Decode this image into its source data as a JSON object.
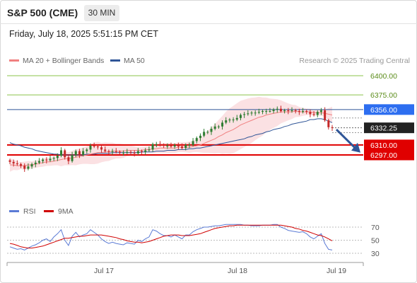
{
  "header": {
    "title": "S&P 500 (CME)",
    "timeframe": "30 MIN",
    "datetime": "Friday, July 18, 2025 5:51:15 PM CET"
  },
  "legend": {
    "ma20_label": "MA 20 + Bollinger Bands",
    "ma20_color": "#f08080",
    "ma50_label": "MA 50",
    "ma50_color": "#2f5597",
    "credit": "Research © 2025 Trading Central"
  },
  "colors": {
    "up": "#2e7d32",
    "down": "#c62828",
    "resistance": "#8bc34a",
    "support": "#e00000",
    "pivot": "#2f5597",
    "last_price_bg": "#222222",
    "arrow": "#2f5597",
    "rsi": "#5b7bd5",
    "rsi_ma": "#d00000"
  },
  "chart_data": [
    {
      "type": "candlestick",
      "title": "S&P 500 (CME)",
      "timeframe": "30 MIN",
      "x_labels": [
        "Jul 17",
        "Jul 18",
        "Jul 19"
      ],
      "ylim": [
        6270,
        6425
      ],
      "grid": false,
      "legend_placement": "top-left",
      "overlays": [
        "MA 20 + Bollinger Bands",
        "MA 50"
      ],
      "levels": [
        {
          "label": "6400.00",
          "value": 6400.0,
          "kind": "resistance"
        },
        {
          "label": "6375.00",
          "value": 6375.0,
          "kind": "resistance"
        },
        {
          "label": "6356.00",
          "value": 6356.0,
          "kind": "pivot"
        },
        {
          "label": "6332.25",
          "value": 6332.25,
          "kind": "last"
        },
        {
          "label": "6310.00",
          "value": 6310.0,
          "kind": "support"
        },
        {
          "label": "6297.00",
          "value": 6297.0,
          "kind": "support"
        }
      ],
      "closes": [
        6288,
        6286,
        6285,
        6283,
        6279,
        6282,
        6285,
        6287,
        6289,
        6291,
        6290,
        6292,
        6293,
        6296,
        6303,
        6294,
        6289,
        6297,
        6302,
        6297,
        6302,
        6304,
        6309,
        6308,
        6307,
        6304,
        6302,
        6301,
        6302,
        6301,
        6300,
        6300,
        6301,
        6300,
        6299,
        6302,
        6301,
        6303,
        6304,
        6311,
        6311,
        6310,
        6309,
        6309,
        6308,
        6310,
        6308,
        6306,
        6310,
        6310,
        6315,
        6319,
        6322,
        6327,
        6327,
        6331,
        6334,
        6334,
        6339,
        6342,
        6343,
        6343,
        6345,
        6349,
        6350,
        6351,
        6352,
        6352,
        6353,
        6354,
        6354,
        6354,
        6356,
        6357,
        6354,
        6355,
        6354,
        6355,
        6354,
        6353,
        6354,
        6353,
        6350,
        6349,
        6353,
        6355,
        6342,
        6333,
        6332.25
      ],
      "ma20": [
        6284,
        6284,
        6283,
        6283,
        6283,
        6284,
        6284,
        6285,
        6286,
        6287,
        6288,
        6288,
        6289,
        6290,
        6291,
        6292,
        6292,
        6293,
        6294,
        6295,
        6296,
        6297,
        6298,
        6299,
        6300,
        6300,
        6301,
        6301,
        6302,
        6302,
        6302,
        6302,
        6303,
        6303,
        6303,
        6303,
        6303,
        6304,
        6304,
        6305,
        6305,
        6306,
        6306,
        6306,
        6306,
        6306,
        6307,
        6307,
        6307,
        6307,
        6308,
        6309,
        6310,
        6312,
        6314,
        6316,
        6318,
        6321,
        6323,
        6326,
        6328,
        6330,
        6333,
        6336,
        6338,
        6340,
        6342,
        6344,
        6346,
        6347,
        6349,
        6350,
        6351,
        6352,
        6353,
        6353,
        6353,
        6353,
        6354,
        6353,
        6353,
        6353,
        6353,
        6352,
        6352,
        6352,
        6351,
        6350,
        6349
      ],
      "ma50": [
        6313,
        6311,
        6310,
        6309,
        6307,
        6306,
        6305,
        6303,
        6302,
        6301,
        6300,
        6299,
        6298,
        6298,
        6297,
        6297,
        6297,
        6297,
        6297,
        6297,
        6297,
        6298,
        6298,
        6298,
        6299,
        6299,
        6299,
        6299,
        6300,
        6300,
        6300,
        6300,
        6300,
        6300,
        6300,
        6300,
        6301,
        6301,
        6301,
        6301,
        6302,
        6302,
        6302,
        6303,
        6303,
        6303,
        6304,
        6304,
        6304,
        6305,
        6305,
        6306,
        6306,
        6307,
        6308,
        6309,
        6310,
        6311,
        6312,
        6313,
        6314,
        6315,
        6316,
        6317,
        6318,
        6320,
        6321,
        6323,
        6324,
        6325,
        6327,
        6328,
        6330,
        6331,
        6332,
        6334,
        6335,
        6337,
        6338,
        6339,
        6340,
        6341,
        6343,
        6343,
        6344,
        6344,
        6343,
        6341,
        6339
      ]
    },
    {
      "type": "line",
      "title": "",
      "series": [
        {
          "name": "RSI",
          "values": [
            40,
            38,
            36,
            37,
            35,
            38,
            41,
            43,
            46,
            50,
            52,
            48,
            55,
            60,
            66,
            50,
            42,
            56,
            62,
            55,
            58,
            60,
            66,
            62,
            58,
            52,
            48,
            45,
            47,
            45,
            44,
            43,
            46,
            45,
            44,
            50,
            48,
            52,
            55,
            66,
            64,
            60,
            57,
            57,
            55,
            58,
            55,
            52,
            58,
            58,
            63,
            66,
            68,
            70,
            70,
            71,
            72,
            72,
            73,
            74,
            74,
            74,
            74,
            74,
            73,
            73,
            72,
            72,
            72,
            73,
            73,
            73,
            74,
            74,
            70,
            68,
            65,
            64,
            63,
            62,
            63,
            60,
            55,
            52,
            56,
            60,
            45,
            36,
            35
          ]
        },
        {
          "name": "9MA",
          "values": [
            45,
            44,
            42,
            40,
            39,
            38,
            38,
            39,
            40,
            41,
            43,
            45,
            47,
            49,
            51,
            53,
            53,
            54,
            55,
            56,
            56,
            57,
            58,
            58,
            58,
            58,
            57,
            56,
            55,
            54,
            52,
            51,
            49,
            48,
            47,
            47,
            46,
            47,
            48,
            50,
            52,
            54,
            56,
            57,
            58,
            58,
            58,
            57,
            57,
            57,
            58,
            59,
            60,
            62,
            64,
            66,
            68,
            69,
            70,
            71,
            72,
            72,
            73,
            73,
            73,
            73,
            73,
            73,
            73,
            73,
            73,
            73,
            73,
            73,
            73,
            72,
            71,
            70,
            68,
            67,
            65,
            64,
            62,
            60,
            58,
            57,
            55,
            52,
            49
          ]
        }
      ],
      "ylim": [
        25,
        80
      ],
      "y_ticks": [
        "70",
        "50",
        "30"
      ],
      "reference_lines": [
        70,
        50,
        30
      ],
      "legend_placement": "top-left"
    }
  ]
}
